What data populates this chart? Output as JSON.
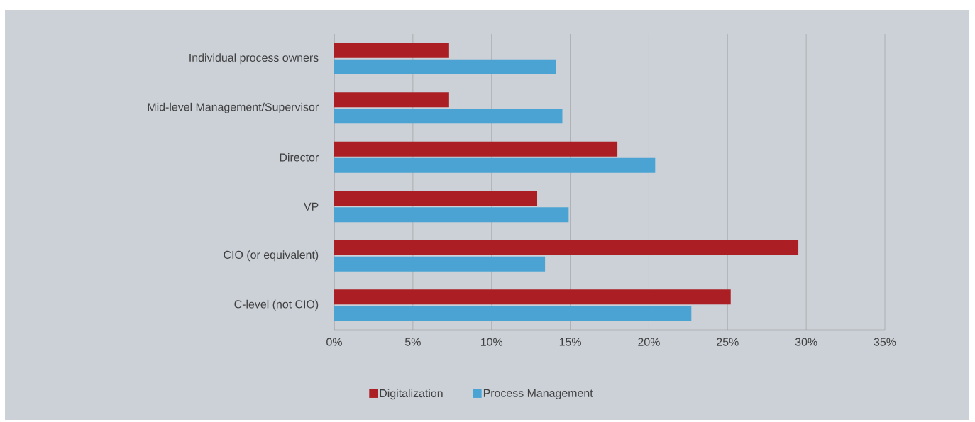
{
  "chart_data": {
    "type": "bar",
    "orientation": "horizontal",
    "categories": [
      "Individual process owners",
      "Mid-level Management/Supervisor",
      "Director",
      "VP",
      "CIO (or equivalent)",
      "C-level (not CIO)"
    ],
    "series": [
      {
        "name": "Digitalization",
        "color": "#ab1f24",
        "values": [
          7.3,
          7.3,
          18.0,
          12.9,
          29.5,
          25.2
        ]
      },
      {
        "name": "Process Management",
        "color": "#4aa3d3",
        "values": [
          14.1,
          14.5,
          20.4,
          14.9,
          13.4,
          22.7
        ]
      }
    ],
    "xlim": [
      0,
      35
    ],
    "xticks": [
      {
        "value": 0,
        "label": "0%"
      },
      {
        "value": 5,
        "label": "5%"
      },
      {
        "value": 10,
        "label": "10%"
      },
      {
        "value": 15,
        "label": "15%"
      },
      {
        "value": 20,
        "label": "20%"
      },
      {
        "value": 25,
        "label": "25%"
      },
      {
        "value": 30,
        "label": "30%"
      },
      {
        "value": 35,
        "label": "35%"
      }
    ],
    "grid": "x",
    "legend": "bottom"
  }
}
